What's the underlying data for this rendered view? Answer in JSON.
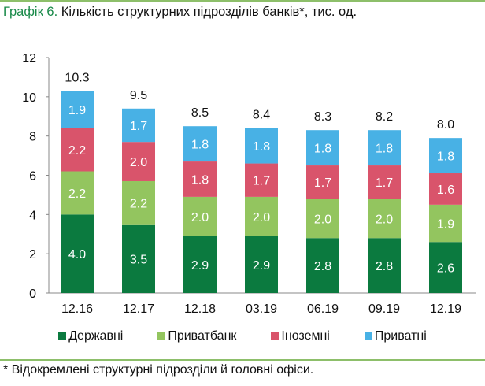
{
  "title": {
    "number": "Графік 6.",
    "text": " Кількість структурних підрозділів банків*, тис. од."
  },
  "footnote": "* Відокремлені структурні підрозділи й головні офіси.",
  "chart_data": {
    "type": "bar",
    "stacked": true,
    "categories": [
      "12.16",
      "12.17",
      "12.18",
      "03.19",
      "06.19",
      "09.19",
      "12.19"
    ],
    "series": [
      {
        "name": "Державні",
        "color": "#0b7a3f",
        "values": [
          4.0,
          3.5,
          2.9,
          2.9,
          2.8,
          2.8,
          2.6
        ]
      },
      {
        "name": "Приватбанк",
        "color": "#93c55f",
        "values": [
          2.2,
          2.2,
          2.0,
          2.0,
          2.0,
          2.0,
          1.9
        ]
      },
      {
        "name": "Іноземні",
        "color": "#d9546b",
        "values": [
          2.2,
          2.0,
          1.8,
          1.7,
          1.7,
          1.7,
          1.6
        ]
      },
      {
        "name": "Приватні",
        "color": "#48b1e5",
        "values": [
          1.9,
          1.7,
          1.8,
          1.8,
          1.8,
          1.8,
          1.8
        ]
      }
    ],
    "totals": [
      "10.3",
      "9.5",
      "8.5",
      "8.4",
      "8.3",
      "8.2",
      "8.0"
    ],
    "ylim": [
      0,
      12
    ],
    "yticks": [
      "0",
      "2",
      "4",
      "6",
      "8",
      "10",
      "12"
    ],
    "grid": false,
    "legend": "bottom"
  }
}
